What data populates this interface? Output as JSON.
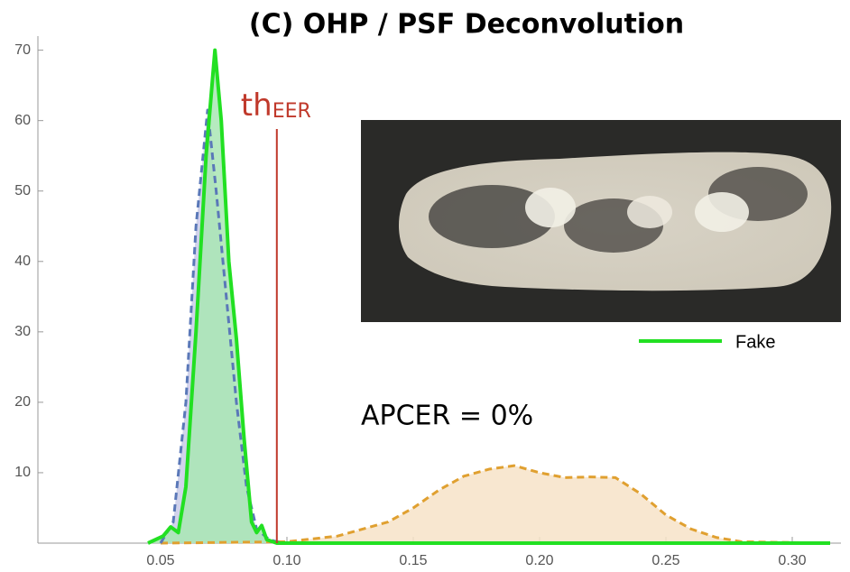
{
  "chart_data": {
    "type": "density",
    "title": "(C) OHP / PSF Deconvolution",
    "xlim": [
      0,
      0.32
    ],
    "ylim": [
      0,
      72
    ],
    "xticks": [
      0.05,
      {
        "value": 0.1,
        "label": "0.10"
      },
      0.15,
      {
        "value": 0.2,
        "label": "0.20"
      },
      0.25,
      {
        "value": 0.3,
        "label": "0.30"
      }
    ],
    "yticks": [
      10,
      20,
      30,
      40,
      50,
      60,
      70
    ],
    "series": [
      {
        "color": "#e0a030",
        "fill": "#f7e3c8",
        "dashed": true,
        "x": [
          0.05,
          0.1,
          0.12,
          0.14,
          0.15,
          0.16,
          0.17,
          0.18,
          0.19,
          0.2,
          0.21,
          0.22,
          0.23,
          0.24,
          0.25,
          0.26,
          0.27,
          0.28,
          0.315
        ],
        "values": [
          0,
          0.2,
          1,
          3,
          5,
          7.5,
          9.5,
          10.5,
          11,
          10,
          9.3,
          9.4,
          9.3,
          7,
          4,
          2,
          0.8,
          0.2,
          0
        ]
      },
      {
        "color": "#5a78b8",
        "fill": "#c9cbe8",
        "dashed": true,
        "x": [
          0.05,
          0.055,
          0.06,
          0.064,
          0.0686,
          0.072,
          0.076,
          0.08,
          0.084,
          0.088,
          0.093,
          0.098
        ],
        "values": [
          0,
          3,
          20,
          45,
          61.5,
          50,
          35,
          20,
          8,
          2,
          0.5,
          0
        ]
      },
      {
        "name": "Fake",
        "color": "#22e022",
        "fill": "#a9e6b4",
        "dashed": false,
        "x": [
          0.045,
          0.051,
          0.054,
          0.057,
          0.06,
          0.064,
          0.068,
          0.0715,
          0.074,
          0.077,
          0.08,
          0.083,
          0.086,
          0.088,
          0.09,
          0.092,
          0.096,
          0.2,
          0.315
        ],
        "values": [
          0,
          1,
          2.3,
          1.5,
          8,
          30,
          55,
          70,
          60,
          40,
          29,
          15,
          3,
          1.5,
          2.5,
          0.5,
          0,
          0,
          0
        ]
      }
    ],
    "threshold": {
      "x": 0.096,
      "label": "th",
      "label_sub": "EER",
      "color": "#c0392b"
    },
    "annotation": "APCER = 0%"
  }
}
